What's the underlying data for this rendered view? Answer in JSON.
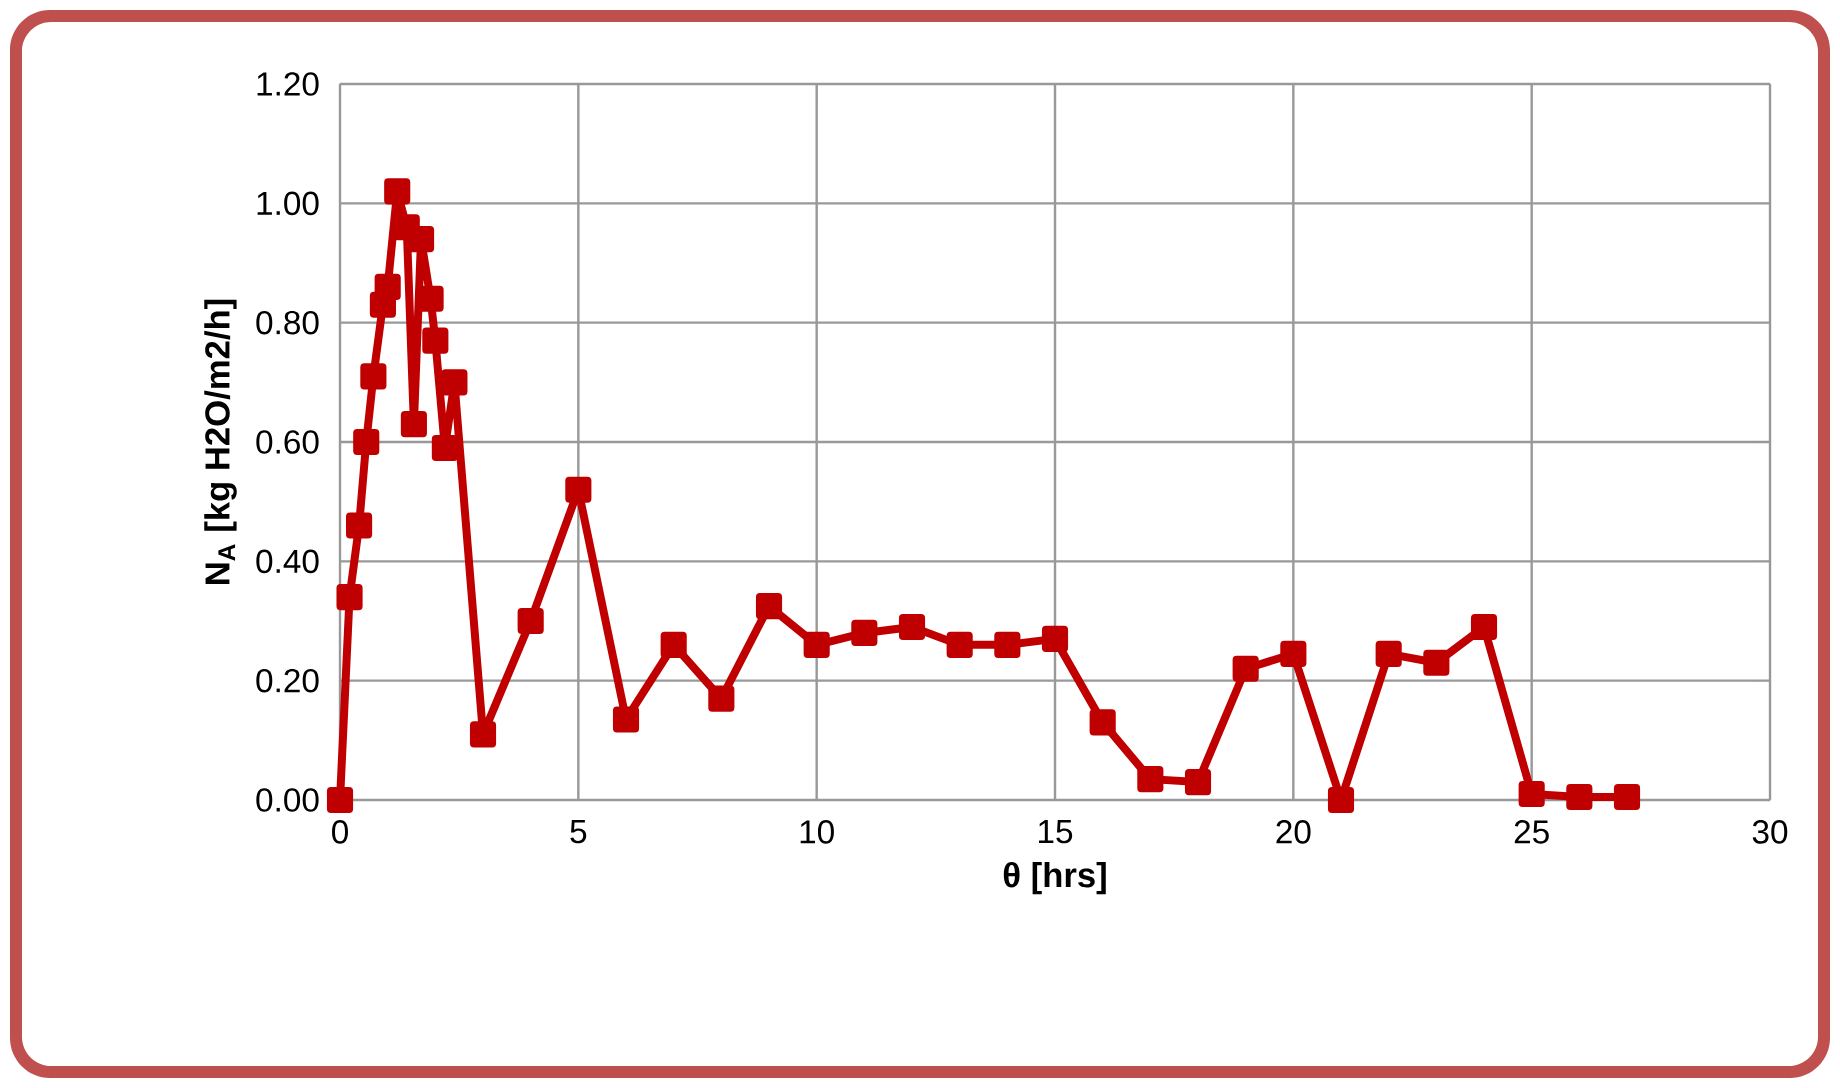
{
  "chart_data": {
    "type": "line",
    "xlabel": "θ [hrs]",
    "ylabel": "N$_{A}$ [kg H2O/m2/h]",
    "x": [
      0,
      0.2,
      0.4,
      0.55,
      0.7,
      0.9,
      1.0,
      1.2,
      1.4,
      1.55,
      1.7,
      1.9,
      2.0,
      2.2,
      2.4,
      3,
      4,
      5,
      6,
      7,
      8,
      9,
      10,
      11,
      12,
      13,
      14,
      15,
      16,
      17,
      18,
      19,
      20,
      21,
      22,
      23,
      24,
      25,
      26,
      27
    ],
    "series": [
      {
        "color": "#c00000",
        "values": [
          0,
          0.34,
          0.46,
          0.6,
          0.71,
          0.83,
          0.86,
          1.02,
          0.96,
          0.63,
          0.94,
          0.84,
          0.77,
          0.59,
          0.7,
          0.11,
          0.3,
          0.52,
          0.135,
          0.26,
          0.17,
          0.325,
          0.26,
          0.28,
          0.29,
          0.26,
          0.26,
          0.27,
          0.13,
          0.035,
          0.03,
          0.22,
          0.245,
          0.0,
          0.245,
          0.23,
          0.29,
          0.01,
          0.005,
          0.005
        ]
      }
    ],
    "xlim": [
      0,
      30
    ],
    "xticks": [
      0,
      5,
      10,
      15,
      20,
      25,
      30
    ],
    "ylim": [
      0,
      1.2
    ],
    "yticks": [
      {
        "value": 0,
        "label": "0.00"
      },
      {
        "value": 0.2,
        "label": "0.20"
      },
      {
        "value": 0.4,
        "label": "0.40"
      },
      {
        "value": 0.6,
        "label": "0.60"
      },
      {
        "value": 0.8,
        "label": "0.80"
      },
      {
        "value": 1.0,
        "label": "1.00"
      },
      {
        "value": 1.2,
        "label": "1.20"
      }
    ],
    "grid": true,
    "marker": "square",
    "line_style": "solid"
  }
}
